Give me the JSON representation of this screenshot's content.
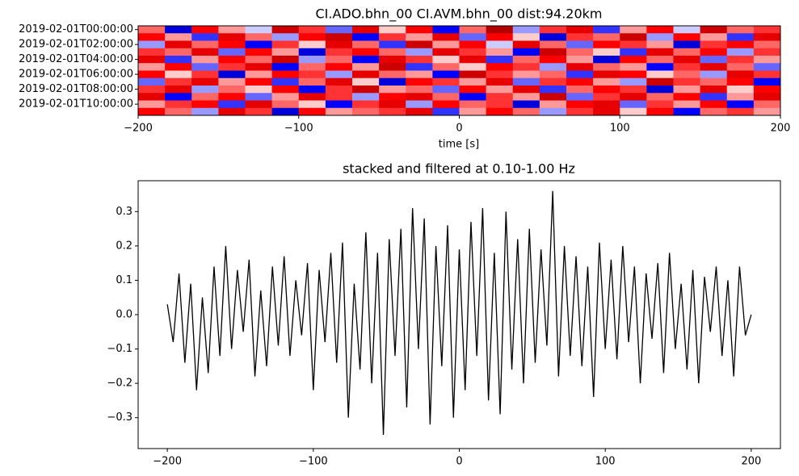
{
  "chart_data": [
    {
      "type": "heatmap",
      "title": "CI.ADO.bhn_00 CI.AVM.bhn_00  dist:94.20km",
      "xlabel": "time [s]",
      "categories": [
        "2019-02-01T00:00:00",
        null,
        "2019-02-01T02:00:00",
        null,
        "2019-02-01T04:00:00",
        null,
        "2019-02-01T06:00:00",
        null,
        "2019-02-01T08:00:00",
        null,
        "2019-02-01T10:00:00",
        null
      ],
      "values": [
        [
          0.3,
          -0.6,
          0.5,
          0.2,
          -0.1,
          0.7,
          0.4,
          -0.3,
          0.6,
          0.1,
          0.5,
          -0.5,
          0.3,
          0.8,
          -0.2,
          0.4,
          0.6,
          -0.4,
          0.2,
          0.5,
          -0.1,
          0.7,
          0.3,
          0.4
        ],
        [
          0.5,
          0.2,
          -0.4,
          0.6,
          0.3,
          -0.2,
          0.5,
          0.7,
          -0.5,
          0.4,
          0.2,
          0.6,
          -0.3,
          0.5,
          0.1,
          -0.6,
          0.4,
          0.3,
          0.7,
          -0.2,
          0.5,
          0.2,
          -0.4,
          0.6
        ],
        [
          -0.2,
          0.6,
          0.3,
          0.5,
          -0.5,
          0.4,
          0.1,
          0.6,
          0.3,
          -0.4,
          0.7,
          0.2,
          0.5,
          -0.1,
          0.6,
          0.3,
          -0.3,
          0.5,
          0.4,
          0.2,
          -0.6,
          0.4,
          0.5,
          0.3
        ],
        [
          0.4,
          0.3,
          0.6,
          -0.3,
          0.5,
          0.2,
          -0.6,
          0.4,
          0.5,
          0.3,
          -0.2,
          0.6,
          0.4,
          0.2,
          -0.5,
          0.7,
          0.3,
          0.1,
          -0.4,
          0.6,
          0.3,
          0.5,
          -0.2,
          0.4
        ],
        [
          0.6,
          -0.4,
          0.2,
          0.5,
          0.3,
          0.7,
          -0.2,
          0.3,
          -0.5,
          0.6,
          0.4,
          0.1,
          0.6,
          -0.4,
          0.3,
          0.5,
          0.2,
          -0.6,
          0.5,
          0.3,
          0.6,
          -0.3,
          0.4,
          0.2
        ],
        [
          0.2,
          0.5,
          -0.3,
          0.4,
          0.6,
          -0.5,
          0.3,
          0.5,
          0.2,
          0.7,
          -0.4,
          0.3,
          0.1,
          0.5,
          0.4,
          -0.2,
          0.6,
          0.3,
          0.2,
          -0.5,
          0.4,
          0.6,
          0.3,
          -0.3
        ],
        [
          0.5,
          0.1,
          0.4,
          -0.6,
          0.2,
          0.5,
          0.4,
          -0.2,
          0.6,
          0.3,
          0.2,
          -0.5,
          0.7,
          0.4,
          0.2,
          0.3,
          -0.4,
          0.6,
          0.5,
          0.1,
          0.3,
          -0.2,
          0.6,
          0.4
        ],
        [
          -0.3,
          0.4,
          0.6,
          0.2,
          0.5,
          -0.4,
          0.3,
          0.6,
          0.1,
          -0.6,
          0.5,
          0.4,
          0.2,
          0.6,
          -0.3,
          0.4,
          0.5,
          0.2,
          -0.2,
          0.7,
          0.4,
          0.3,
          0.5,
          -0.5
        ],
        [
          0.4,
          0.6,
          -0.2,
          0.3,
          0.1,
          0.5,
          -0.5,
          0.4,
          0.7,
          0.2,
          0.3,
          -0.3,
          0.5,
          0.2,
          0.6,
          -0.4,
          0.3,
          0.5,
          0.4,
          -0.6,
          0.2,
          0.6,
          0.1,
          0.5
        ],
        [
          0.6,
          -0.5,
          0.3,
          0.5,
          -0.3,
          0.2,
          0.6,
          0.4,
          -0.2,
          0.5,
          0.6,
          0.3,
          -0.5,
          0.4,
          0.2,
          0.7,
          -0.3,
          0.4,
          0.6,
          0.3,
          0.5,
          -0.4,
          0.2,
          0.6
        ],
        [
          0.2,
          0.4,
          0.5,
          -0.4,
          0.6,
          0.3,
          0.1,
          -0.5,
          0.4,
          0.6,
          -0.2,
          0.5,
          0.3,
          0.4,
          -0.6,
          0.2,
          0.5,
          0.6,
          -0.3,
          0.4,
          0.2,
          0.5,
          -0.5,
          0.3
        ],
        [
          0.5,
          0.3,
          -0.2,
          0.6,
          0.4,
          -0.6,
          0.5,
          0.2,
          0.3,
          0.4,
          0.6,
          -0.4,
          0.2,
          0.5,
          0.3,
          -0.2,
          0.4,
          0.6,
          0.1,
          0.5,
          -0.5,
          0.3,
          0.4,
          0.2
        ]
      ],
      "zlim": [
        -1,
        1
      ],
      "colormap": "seismic",
      "xlim": [
        -200,
        200
      ],
      "xticks": [
        {
          "value": -200,
          "label": "−200"
        },
        {
          "value": -100,
          "label": "−100"
        },
        0,
        100,
        200
      ]
    },
    {
      "type": "line",
      "title": "stacked and filtered at 0.10-1.00 Hz",
      "color": "#000000",
      "x": [
        -200,
        -196,
        -192,
        -188,
        -184,
        -180,
        -176,
        -172,
        -168,
        -164,
        -160,
        -156,
        -152,
        -148,
        -144,
        -140,
        -136,
        -132,
        -128,
        -124,
        -120,
        -116,
        -112,
        -108,
        -104,
        -100,
        -96,
        -92,
        -88,
        -84,
        -80,
        -76,
        -72,
        -68,
        -64,
        -60,
        -56,
        -52,
        -48,
        -44,
        -40,
        -36,
        -32,
        -28,
        -24,
        -20,
        -16,
        -12,
        -8,
        -4,
        0,
        4,
        8,
        12,
        16,
        20,
        24,
        28,
        32,
        36,
        40,
        44,
        48,
        52,
        56,
        60,
        64,
        68,
        72,
        76,
        80,
        84,
        88,
        92,
        96,
        100,
        104,
        108,
        112,
        116,
        120,
        124,
        128,
        132,
        136,
        140,
        144,
        148,
        152,
        156,
        160,
        164,
        168,
        172,
        176,
        180,
        184,
        188,
        192,
        196,
        200
      ],
      "values": [
        0.03,
        -0.08,
        0.12,
        -0.14,
        0.09,
        -0.22,
        0.05,
        -0.17,
        0.14,
        -0.12,
        0.2,
        -0.1,
        0.13,
        -0.05,
        0.16,
        -0.18,
        0.07,
        -0.15,
        0.14,
        -0.09,
        0.17,
        -0.12,
        0.1,
        -0.06,
        0.15,
        -0.22,
        0.13,
        -0.08,
        0.18,
        -0.14,
        0.21,
        -0.3,
        0.09,
        -0.16,
        0.24,
        -0.2,
        0.18,
        -0.35,
        0.22,
        -0.12,
        0.25,
        -0.27,
        0.31,
        -0.1,
        0.28,
        -0.32,
        0.2,
        -0.15,
        0.26,
        -0.3,
        0.19,
        -0.22,
        0.27,
        -0.12,
        0.31,
        -0.25,
        0.18,
        -0.29,
        0.3,
        -0.16,
        0.22,
        -0.2,
        0.25,
        -0.14,
        0.19,
        -0.09,
        0.36,
        -0.18,
        0.2,
        -0.12,
        0.17,
        -0.15,
        0.14,
        -0.24,
        0.21,
        -0.1,
        0.16,
        -0.13,
        0.2,
        -0.08,
        0.14,
        -0.2,
        0.12,
        -0.07,
        0.15,
        -0.17,
        0.18,
        -0.1,
        0.09,
        -0.16,
        0.13,
        -0.2,
        0.11,
        -0.05,
        0.14,
        -0.12,
        0.1,
        -0.18,
        0.14,
        -0.06,
        0.0
      ],
      "xlim": [
        -220,
        220
      ],
      "xticks": [
        {
          "value": -200,
          "label": "−200"
        },
        {
          "value": -100,
          "label": "−100"
        },
        0,
        100,
        200
      ],
      "ylim": [
        -0.39,
        0.39
      ],
      "yticks": [
        {
          "value": -0.3,
          "label": "−0.3"
        },
        {
          "value": -0.2,
          "label": "−0.2"
        },
        {
          "value": -0.1,
          "label": "−0.1"
        },
        {
          "value": 0,
          "label": "0.0"
        },
        0.1,
        0.2,
        0.3
      ]
    }
  ]
}
